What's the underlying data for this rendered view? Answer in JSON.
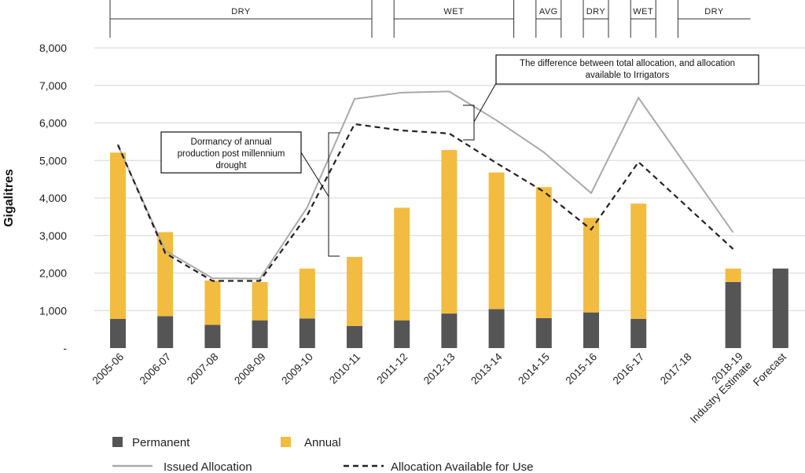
{
  "chart_data": {
    "type": "bar",
    "ylabel": "Gigalitres",
    "ylim": [
      0,
      8000
    ],
    "yticks": [
      "-",
      "1,000",
      "2,000",
      "3,000",
      "4,000",
      "5,000",
      "6,000",
      "7,000",
      "8,000"
    ],
    "categories": [
      "2005-06",
      "2006-07",
      "2007-08",
      "2008-09",
      "2009-10",
      "2010-11",
      "2011-12",
      "2012-13",
      "2013-14",
      "2014-15",
      "2015-16",
      "2016-17",
      "2017-18",
      "2018-19\nIndustry Estimate",
      "Forecast"
    ],
    "stacked": true,
    "series": [
      {
        "name": "Permanent",
        "kind": "bar",
        "color": "#555555",
        "values": [
          780,
          850,
          620,
          740,
          790,
          590,
          740,
          920,
          1040,
          800,
          950,
          780,
          null,
          1760,
          2120
        ]
      },
      {
        "name": "Annual",
        "kind": "bar",
        "color": "#f2bc41",
        "values": [
          4430,
          2240,
          1180,
          1020,
          1330,
          1840,
          3000,
          4360,
          3640,
          3490,
          2520,
          3070,
          null,
          360,
          null
        ]
      },
      {
        "name": "Issued Allocation",
        "kind": "line",
        "color": "#a9a9a9",
        "dash": false,
        "values": [
          5400,
          2600,
          1860,
          1850,
          3750,
          6640,
          6810,
          6840,
          6070,
          5220,
          4130,
          6670,
          null,
          3080,
          null
        ]
      },
      {
        "name": "Allocation Available for Use",
        "kind": "line",
        "color": "#222222",
        "dash": true,
        "values": [
          5420,
          2530,
          1790,
          1790,
          3540,
          5970,
          5800,
          5720,
          4930,
          4170,
          3160,
          4960,
          null,
          2640,
          null
        ]
      }
    ],
    "phases": [
      {
        "label": "DRY",
        "from": 0,
        "to": 5
      },
      {
        "label": "WET",
        "from": 6,
        "to": 8
      },
      {
        "label": "AVG",
        "from": 9,
        "to": 9
      },
      {
        "label": "DRY",
        "from": 10,
        "to": 10
      },
      {
        "label": "WET",
        "from": 11,
        "to": 11
      },
      {
        "label": "DRY",
        "from": 12,
        "to": 13
      }
    ],
    "annotations": [
      {
        "text": [
          "Dormancy of annual",
          "production post millennium",
          "drought"
        ]
      },
      {
        "text": [
          "The difference between total allocation, and allocation",
          "available to Irrigators"
        ]
      }
    ],
    "legend": {
      "placement": "bottom",
      "items": [
        "Permanent",
        "Annual",
        "Issued Allocation",
        "Allocation Available for Use"
      ]
    }
  }
}
